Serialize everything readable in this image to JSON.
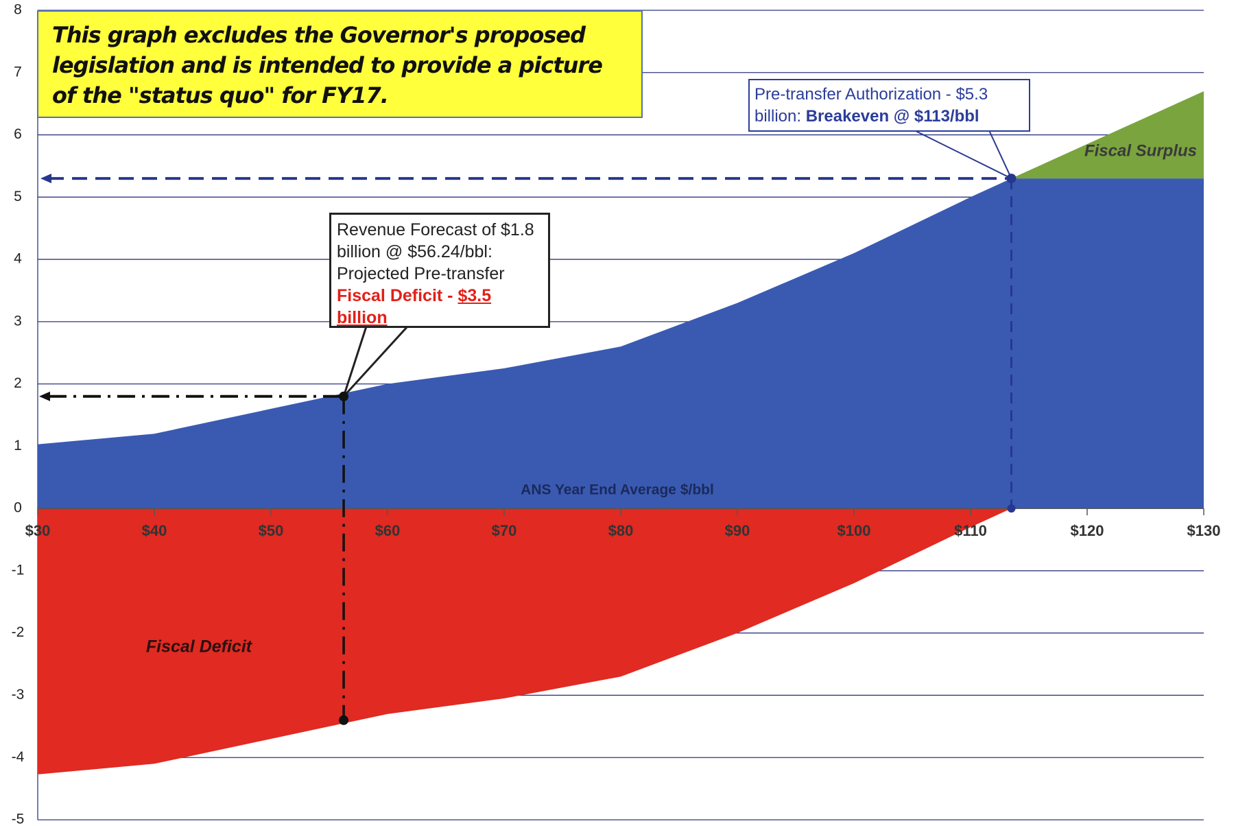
{
  "chart_data": {
    "type": "area",
    "x": [
      30,
      40,
      50,
      60,
      70,
      80,
      90,
      100,
      110,
      113.5,
      130
    ],
    "series": [
      {
        "color": "#3a5ab2",
        "values": [
          1.03,
          1.2,
          1.6,
          2.0,
          2.25,
          2.6,
          3.3,
          4.1,
          5.0,
          5.3,
          5.3
        ]
      },
      {
        "color": "#7aa43e",
        "values": [
          null,
          null,
          null,
          null,
          null,
          null,
          null,
          null,
          null,
          0,
          1.4
        ]
      },
      {
        "color": "#e02a22",
        "values": [
          -4.27,
          -4.1,
          -3.7,
          -3.3,
          -3.05,
          -2.7,
          -2.0,
          -1.2,
          -0.3,
          0,
          null
        ]
      }
    ],
    "markers": [
      {
        "x": 56.24,
        "y": 1.8
      },
      {
        "x": 56.24,
        "y": -3.4
      },
      {
        "x": 113.5,
        "y": 5.3
      }
    ],
    "xlim": [
      30,
      130
    ],
    "xticks": [
      {
        "value": 30,
        "label": "$30"
      },
      {
        "value": 40,
        "label": "$40"
      },
      {
        "value": 50,
        "label": "$50"
      },
      {
        "value": 60,
        "label": "$60"
      },
      {
        "value": 70,
        "label": "$70"
      },
      {
        "value": 80,
        "label": "$80"
      },
      {
        "value": 90,
        "label": "$90"
      },
      {
        "value": 100,
        "label": "$100"
      },
      {
        "value": 110,
        "label": "$110"
      },
      {
        "value": 120,
        "label": "$120"
      },
      {
        "value": 130,
        "label": "$130"
      }
    ],
    "ylim": [
      -5,
      8
    ],
    "yticks": [
      -5,
      -4,
      -3,
      -2,
      -1,
      0,
      1,
      2,
      3,
      4,
      5,
      6,
      7,
      8
    ],
    "grid": true,
    "x_label": "ANS Year End Average $/bbl",
    "note": "This graph excludes the Governor's proposed legislation and is intended to provide a picture of the \"status quo\" for FY17.",
    "revenue_callout": [
      "Revenue Forecast of $1.8 billion @ $56.24/bbl: Projected Pre-transfer",
      "Fiscal Deficit - ",
      "$3.5 billion"
    ],
    "authorization_callout": [
      "Pre-transfer Authorization - $5.3 billion: ",
      "Breakeven @ $113/bbl"
    ],
    "region_labels": [
      "Fiscal Surplus",
      "Fiscal Deficit"
    ]
  }
}
